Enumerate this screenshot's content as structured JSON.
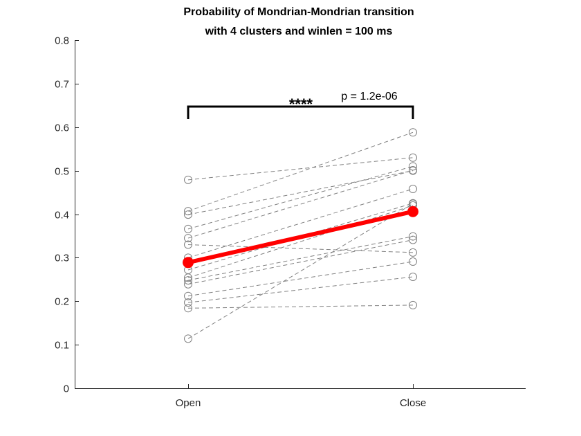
{
  "chart_data": {
    "type": "line",
    "title": [
      "Probability of Mondrian-Mondrian transition",
      "with 4 clusters and winlen = 100 ms"
    ],
    "xlabel": "",
    "ylabel": "",
    "categories": [
      "Open",
      "Close"
    ],
    "ylim": [
      0,
      0.8
    ],
    "yticks": [
      0,
      0.1,
      0.2,
      0.3,
      0.4,
      0.5,
      0.6,
      0.7,
      0.8
    ],
    "ytick_labels": [
      "0",
      "0.1",
      "0.2",
      "0.3",
      "0.4",
      "0.5",
      "0.6",
      "0.7",
      "0.8"
    ],
    "grid": false,
    "subjects": [
      {
        "values": [
          0.479,
          0.53
        ]
      },
      {
        "values": [
          0.407,
          0.588
        ]
      },
      {
        "values": [
          0.399,
          0.5
        ]
      },
      {
        "values": [
          0.366,
          0.51
        ]
      },
      {
        "values": [
          0.345,
          0.501
        ]
      },
      {
        "values": [
          0.33,
          0.312
        ]
      },
      {
        "values": [
          0.3,
          0.458
        ]
      },
      {
        "values": [
          0.272,
          0.425
        ]
      },
      {
        "values": [
          0.254,
          0.42
        ]
      },
      {
        "values": [
          0.248,
          0.349
        ]
      },
      {
        "values": [
          0.239,
          0.341
        ]
      },
      {
        "values": [
          0.212,
          0.291
        ]
      },
      {
        "values": [
          0.197,
          0.256
        ]
      },
      {
        "values": [
          0.184,
          0.191
        ]
      },
      {
        "values": [
          0.114,
          0.424
        ]
      }
    ],
    "mean": {
      "values": [
        0.289,
        0.406
      ]
    },
    "significance": {
      "stars": "****",
      "p_text": "p = 1.2e-06"
    },
    "colors": {
      "mean": "#ff0000",
      "subject": "#808080",
      "bracket": "#000000"
    }
  }
}
